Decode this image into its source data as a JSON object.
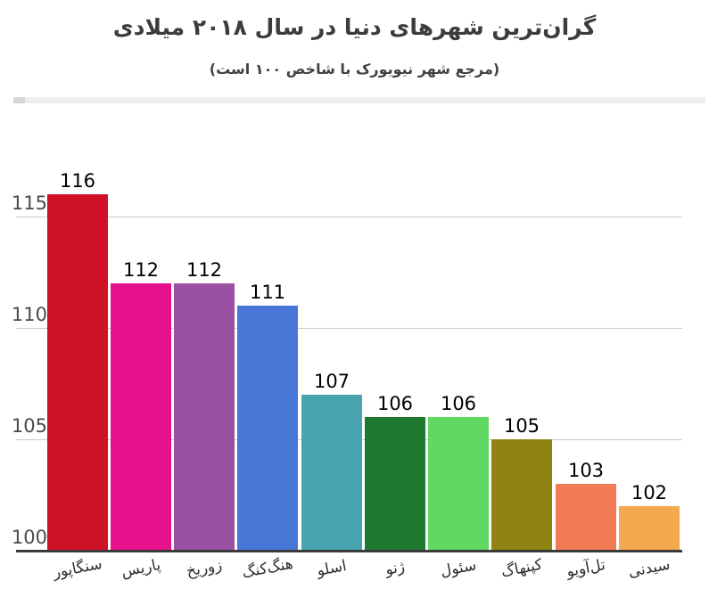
{
  "header": {
    "title": "گران‌ترین شهرهای دنیا در سال ۲۰۱۸  میلادی",
    "subtitle": "(مرجع شهر نیویورک با شاخص ۱۰۰ است)"
  },
  "chart_data": {
    "type": "bar",
    "title": "گران‌ترین شهرهای دنیا در سال ۲۰۱۸  میلادی",
    "subtitle": "(مرجع شهر نیویورک با شاخص ۱۰۰ است)",
    "categories": [
      "سنگاپور",
      "پاریس",
      "زوریخ",
      "هنگ‌کنگ",
      "اسلو",
      "ژنو",
      "سئول",
      "کپنهاگ",
      "تل‌آویو",
      "سیدنی"
    ],
    "values": [
      116,
      112,
      112,
      111,
      107,
      106,
      106,
      105,
      103,
      102
    ],
    "value_labels": [
      "116",
      "112",
      "112",
      "111",
      "107",
      "106",
      "106",
      "105",
      "103",
      "102"
    ],
    "bar_colors": [
      "#D01228",
      "#E6118C",
      "#9B51A3",
      "#4876D6",
      "#48A4AE",
      "#1E7A30",
      "#61D861",
      "#8F8412",
      "#F27B56",
      "#F5A94E"
    ],
    "yticks": [
      100,
      105,
      110,
      115
    ],
    "ylim": [
      100,
      117
    ],
    "baseline": 100,
    "grid": true,
    "legend": "none",
    "colors": {
      "grid": "#cbcbcb",
      "axis": "#3a3a3a",
      "title_text": "#3c3c3c",
      "tick_text": "#4b4b4b",
      "value_text": "#000000",
      "category_text": "#2e2e2e",
      "scrollbar_track": "#ededed",
      "scrollbar_thumb": "#d7d7d7"
    }
  }
}
